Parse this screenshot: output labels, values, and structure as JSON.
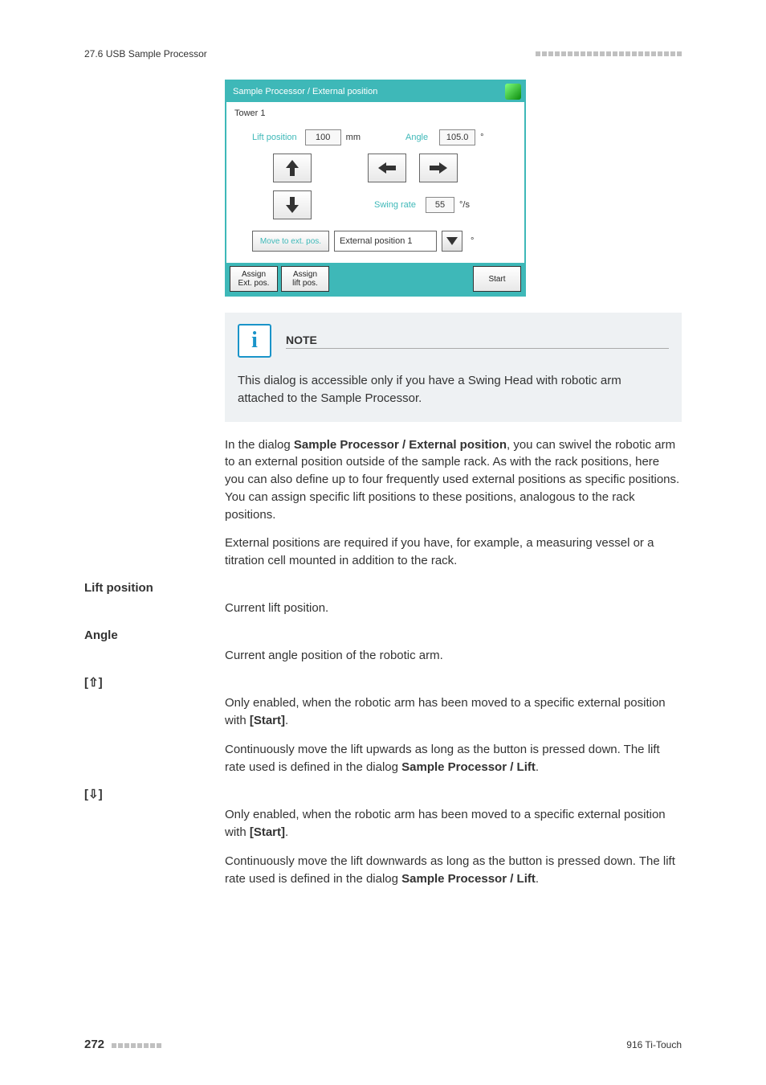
{
  "header": {
    "section": "27.6 USB Sample Processor",
    "blocks_count": 23
  },
  "dialog": {
    "title": "Sample Processor / External position",
    "tower": "Tower 1",
    "lift_position_label": "Lift position",
    "lift_position_value": "100",
    "lift_position_unit": "mm",
    "angle_label": "Angle",
    "angle_value": "105.0",
    "angle_unit": "°",
    "swing_rate_label": "Swing rate",
    "swing_rate_value": "55",
    "swing_rate_unit": "°/s",
    "move_ext_label": "Move to ext. pos.",
    "ext_select_value": "External position 1",
    "ext_degree": "°",
    "btn_assign_ext_l1": "Assign",
    "btn_assign_ext_l2": "Ext. pos.",
    "btn_assign_lift_l1": "Assign",
    "btn_assign_lift_l2": "lift pos.",
    "btn_start": "Start",
    "colors": {
      "teal": "#3eb8b8",
      "title_text": "#ffffff",
      "body_bg": "#ffffff"
    }
  },
  "note": {
    "title": "NOTE",
    "icon_glyph": "i",
    "body": "This dialog is accessible only if you have a Swing Head with robotic arm attached to the Sample Processor."
  },
  "paragraphs": {
    "p1a": "In the dialog ",
    "p1b": "Sample Processor / External position",
    "p1c": ", you can swivel the robotic arm to an external position outside of the sample rack. As with the rack positions, here you can also define up to four frequently used external positions as specific positions. You can assign specific lift positions to these positions, analogous to the rack positions.",
    "p2": "External positions are required if you have, for example, a measuring vessel or a titration cell mounted in addition to the rack."
  },
  "defs": {
    "lift_position": {
      "label": "Lift position",
      "body": "Current lift position."
    },
    "angle": {
      "label": "Angle",
      "body": "Current angle position of the robotic arm."
    },
    "up": {
      "label": "[⇧]",
      "b1a": "Only enabled, when the robotic arm has been moved to a specific external position with ",
      "b1b": "[Start]",
      "b1c": ".",
      "b2a": "Continuously move the lift upwards as long as the button is pressed down. The lift rate used is defined in the dialog ",
      "b2b": "Sample Processor / Lift",
      "b2c": "."
    },
    "down": {
      "label": "[⇩]",
      "b1a": "Only enabled, when the robotic arm has been moved to a specific external position with ",
      "b1b": "[Start]",
      "b1c": ".",
      "b2a": "Continuously move the lift downwards as long as the button is pressed down. The lift rate used is defined in the dialog ",
      "b2b": "Sample Processor / Lift",
      "b2c": "."
    }
  },
  "footer": {
    "page": "272",
    "blocks_count": 8,
    "right_text": "916 Ti-Touch"
  }
}
